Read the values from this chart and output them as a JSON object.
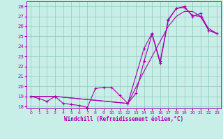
{
  "xlabel": "Windchill (Refroidissement éolien,°C)",
  "xlim": [
    -0.5,
    23.5
  ],
  "ylim": [
    17.8,
    28.5
  ],
  "yticks": [
    18,
    19,
    20,
    21,
    22,
    23,
    24,
    25,
    26,
    27,
    28
  ],
  "xticks": [
    0,
    1,
    2,
    3,
    4,
    5,
    6,
    7,
    8,
    9,
    10,
    11,
    12,
    13,
    14,
    15,
    16,
    17,
    18,
    19,
    20,
    21,
    22,
    23
  ],
  "bg_color": "#c8eee8",
  "line_color": "#aa00aa",
  "series1_x": [
    0,
    1,
    2,
    3,
    4,
    5,
    6,
    7,
    8,
    9,
    10,
    11,
    12,
    13,
    14,
    15,
    16,
    17,
    18,
    19,
    20,
    21,
    22,
    23
  ],
  "series1_y": [
    19.0,
    18.8,
    18.5,
    19.0,
    18.3,
    18.2,
    18.1,
    17.9,
    19.8,
    19.9,
    19.9,
    19.1,
    18.3,
    19.3,
    22.5,
    25.2,
    22.3,
    26.6,
    27.8,
    27.9,
    27.1,
    27.0,
    25.6,
    25.3
  ],
  "series2_x": [
    0,
    3,
    12,
    14,
    15,
    16,
    17,
    18,
    19,
    20,
    21,
    22,
    23
  ],
  "series2_y": [
    19.0,
    19.0,
    18.3,
    23.8,
    25.3,
    22.5,
    26.7,
    27.8,
    28.0,
    27.0,
    27.3,
    25.6,
    25.3
  ],
  "series3_x": [
    0,
    3,
    12,
    14,
    15,
    16,
    17,
    18,
    19,
    20,
    21,
    22,
    23
  ],
  "series3_y": [
    19.0,
    19.0,
    18.3,
    21.5,
    23.0,
    24.5,
    26.0,
    27.0,
    27.5,
    27.5,
    27.0,
    25.8,
    25.3
  ]
}
